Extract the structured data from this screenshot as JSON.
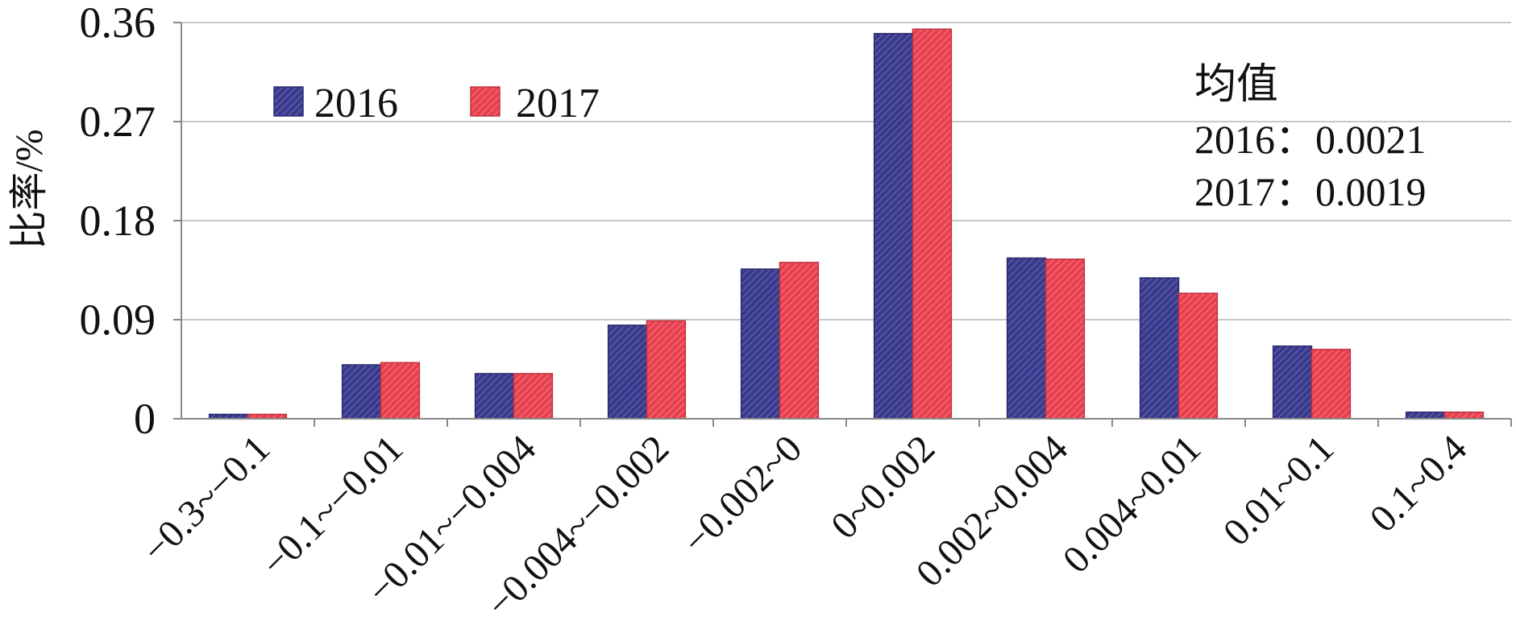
{
  "chart_data": {
    "type": "bar",
    "title": "",
    "xlabel": "",
    "ylabel": "比率/%",
    "categories": [
      "−0.3~−0.1",
      "−0.1~−0.01",
      "−0.01~−0.004",
      "−0.004~−0.002",
      "−0.002~0",
      "0~0.002",
      "0.002~0.004",
      "0.004~0.01",
      "0.01~0.1",
      "0.1~0.4"
    ],
    "series": [
      {
        "name": "2016",
        "values": [
          0.004,
          0.049,
          0.041,
          0.085,
          0.136,
          0.35,
          0.146,
          0.128,
          0.066,
          0.006
        ]
      },
      {
        "name": "2017",
        "values": [
          0.004,
          0.051,
          0.041,
          0.089,
          0.142,
          0.354,
          0.145,
          0.114,
          0.063,
          0.006
        ]
      }
    ],
    "ylim": [
      0,
      0.36
    ],
    "yticks": [
      "0",
      "0.09",
      "0.18",
      "0.27",
      "0.36"
    ],
    "yticks_values": [
      0,
      0.09,
      0.18,
      0.27,
      0.36
    ],
    "grid": true,
    "legend": "top-left",
    "colors": {
      "2016": "#3a3a8c",
      "2017": "#e8404e"
    },
    "annotation": {
      "title": "均值",
      "lines": [
        "2016：0.0021",
        "2017：0.0019"
      ]
    }
  }
}
